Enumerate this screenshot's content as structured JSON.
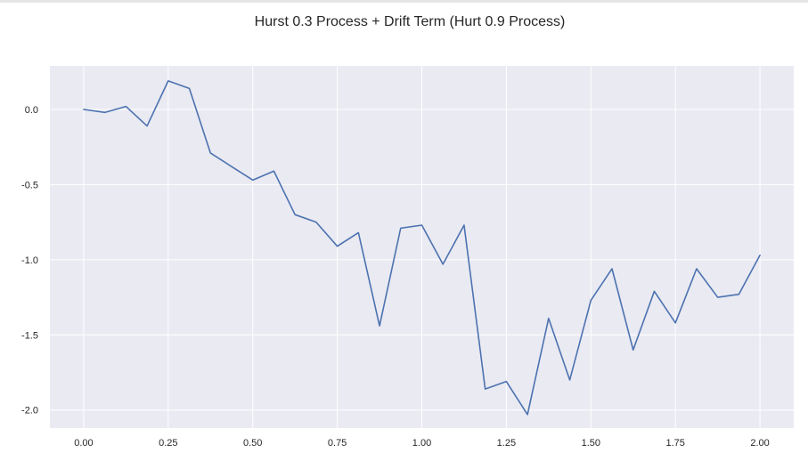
{
  "chart_data": {
    "type": "line",
    "title": "Hurst 0.3 Process + Drift Term (Hurt 0.9 Process)",
    "xlabel": "",
    "ylabel": "",
    "xlim": [
      -0.0999,
      2.0999
    ],
    "ylim": [
      -2.12,
      0.29
    ],
    "x_ticks": [
      "0.00",
      "0.25",
      "0.50",
      "0.75",
      "1.00",
      "1.25",
      "1.50",
      "1.75",
      "2.00"
    ],
    "y_ticks": [
      "0.0",
      "-0.5",
      "-1.0",
      "-1.5",
      "-2.0"
    ],
    "x_tick_values": [
      0,
      0.25,
      0.5,
      0.75,
      1.0,
      1.25,
      1.5,
      1.75,
      2.0
    ],
    "y_tick_values": [
      0,
      -0.5,
      -1.0,
      -1.5,
      -2.0
    ],
    "grid": true,
    "legend": "none",
    "colors": {
      "line": "#4c72b0",
      "background": "#eaeaf2",
      "grid": "#ffffff"
    },
    "series": [
      {
        "x": [
          0,
          0.0625,
          0.125,
          0.1875,
          0.25,
          0.3125,
          0.375,
          0.4375,
          0.5,
          0.5625,
          0.625,
          0.6875,
          0.75,
          0.8125,
          0.875,
          0.9375,
          1.0,
          1.0625,
          1.125,
          1.1875,
          1.25,
          1.3125,
          1.375,
          1.4375,
          1.5,
          1.5625,
          1.625,
          1.6875,
          1.75,
          1.8125,
          1.875,
          1.9375,
          2.0
        ],
        "values": [
          0.0,
          -0.02,
          0.02,
          -0.11,
          0.19,
          0.14,
          -0.29,
          -0.38,
          -0.47,
          -0.41,
          -0.7,
          -0.75,
          -0.91,
          -0.82,
          -1.44,
          -0.79,
          -0.77,
          -1.03,
          -0.77,
          -1.86,
          -1.81,
          -2.03,
          -1.39,
          -1.8,
          -1.27,
          -1.06,
          -1.6,
          -1.21,
          -1.42,
          -1.06,
          -1.25,
          -1.23,
          -0.97
        ]
      }
    ]
  }
}
